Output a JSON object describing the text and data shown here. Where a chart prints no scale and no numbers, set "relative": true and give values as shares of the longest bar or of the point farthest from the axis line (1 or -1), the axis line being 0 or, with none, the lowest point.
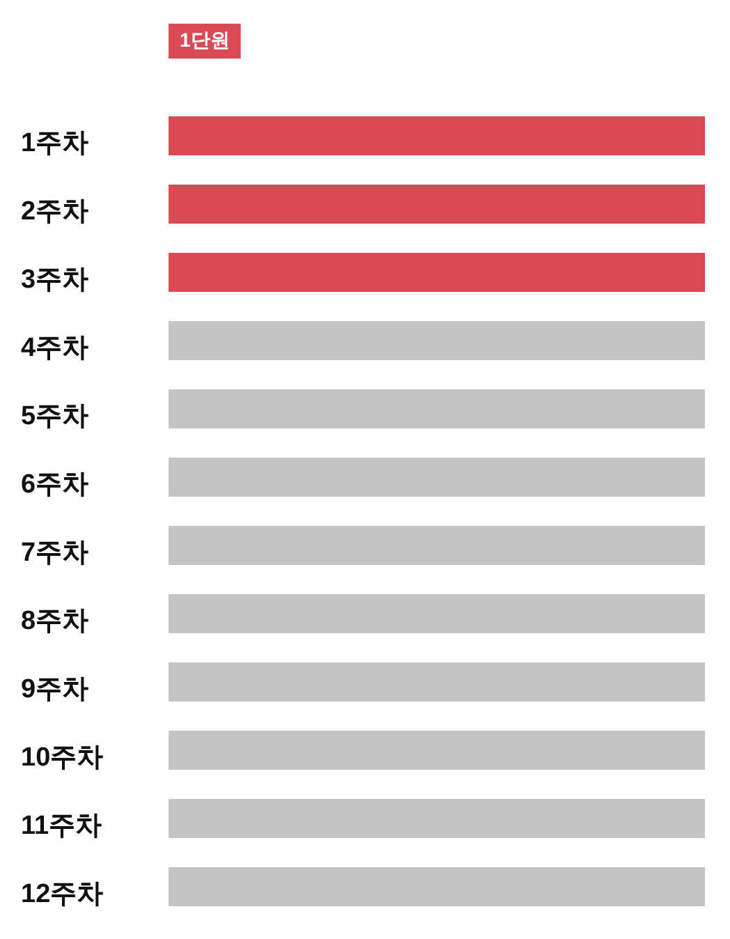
{
  "chart_data": {
    "type": "bar",
    "orientation": "horizontal",
    "relative": true,
    "legend": "top left",
    "categories": [
      "1주차",
      "2주차",
      "3주차",
      "4주차",
      "5주차",
      "6주차",
      "7주차",
      "8주차",
      "9주차",
      "10주차",
      "11주차",
      "12주차"
    ],
    "series": [
      {
        "name": "1단원",
        "color": "#d94a55",
        "values": [
          1,
          1,
          1,
          null,
          null,
          null,
          null,
          null,
          null,
          null,
          null,
          null
        ]
      },
      {
        "color": "#c4c4c4",
        "values": [
          null,
          null,
          null,
          1,
          1,
          1,
          1,
          1,
          1,
          1,
          1,
          1
        ]
      }
    ]
  }
}
